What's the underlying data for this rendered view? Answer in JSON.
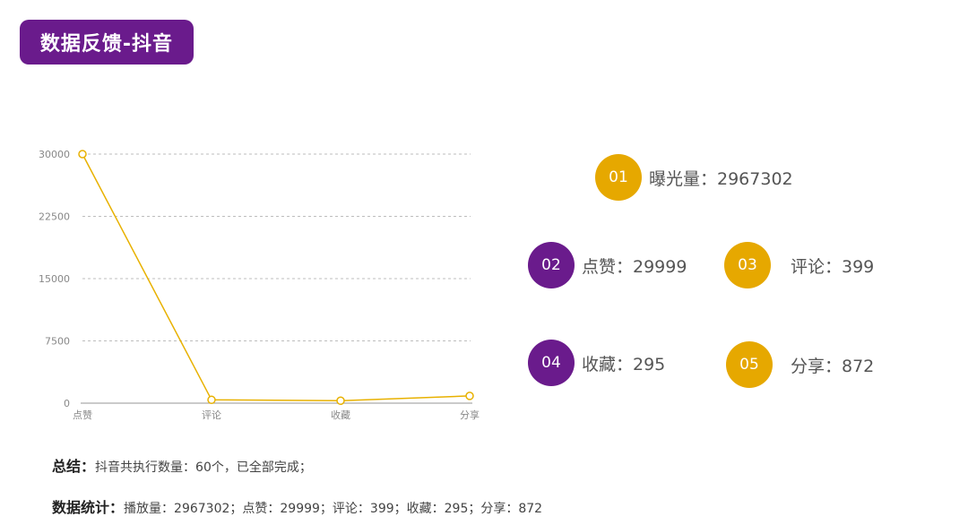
{
  "header": {
    "title": "数据反馈-抖音"
  },
  "chart_data": {
    "type": "line",
    "categories": [
      "点赞",
      "评论",
      "收藏",
      "分享"
    ],
    "values": [
      29999,
      399,
      295,
      872
    ],
    "yticks": [
      "0",
      "7500",
      "15000",
      "22500",
      "30000"
    ],
    "ylim": [
      0,
      30000
    ],
    "grid": true,
    "color": "#e8b100"
  },
  "stats": [
    {
      "num": "01",
      "text": "曝光量：2967302",
      "color": "#e6a800"
    },
    {
      "num": "02",
      "text": "点赞：29999",
      "color": "#6a1b8c"
    },
    {
      "num": "03",
      "text": "评论：399",
      "color": "#e6a800"
    },
    {
      "num": "04",
      "text": "收藏：295",
      "color": "#6a1b8c"
    },
    {
      "num": "05",
      "text": "分享：872",
      "color": "#e6a800"
    }
  ],
  "summary": {
    "key": "总结",
    "sep": "：",
    "text": "抖音共执行数量：60个，已全部完成；"
  },
  "statistics": {
    "key": "数据统计",
    "sep": "：",
    "text": "播放量：2967302；点赞：29999；评论：399；收藏：295；分享：872"
  }
}
